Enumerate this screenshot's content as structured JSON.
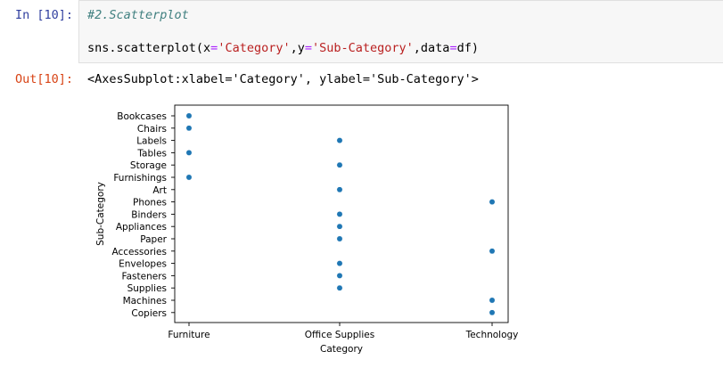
{
  "input_cell": {
    "prompt": "In [10]:",
    "code_comment": "#2.Scatterplot",
    "code_line": {
      "p1": "sns.scatterplot(x",
      "eq1": "=",
      "s1": "'Category'",
      "p2": ",y",
      "eq2": "=",
      "s2": "'Sub-Category'",
      "p3": ",data",
      "eq3": "=",
      "p4": "df)"
    }
  },
  "output_cell": {
    "prompt": "Out[10]:",
    "text": "<AxesSubplot:xlabel='Category', ylabel='Sub-Category'>"
  },
  "chart_data": {
    "type": "scatter",
    "xlabel": "Category",
    "ylabel": "Sub-Category",
    "x_categories": [
      "Furniture",
      "Office Supplies",
      "Technology"
    ],
    "y_categories": [
      "Bookcases",
      "Chairs",
      "Labels",
      "Tables",
      "Storage",
      "Furnishings",
      "Art",
      "Phones",
      "Binders",
      "Appliances",
      "Paper",
      "Accessories",
      "Envelopes",
      "Fasteners",
      "Supplies",
      "Machines",
      "Copiers"
    ],
    "points": [
      {
        "x": "Furniture",
        "y": "Bookcases"
      },
      {
        "x": "Furniture",
        "y": "Chairs"
      },
      {
        "x": "Office Supplies",
        "y": "Labels"
      },
      {
        "x": "Furniture",
        "y": "Tables"
      },
      {
        "x": "Office Supplies",
        "y": "Storage"
      },
      {
        "x": "Furniture",
        "y": "Furnishings"
      },
      {
        "x": "Office Supplies",
        "y": "Art"
      },
      {
        "x": "Technology",
        "y": "Phones"
      },
      {
        "x": "Office Supplies",
        "y": "Binders"
      },
      {
        "x": "Office Supplies",
        "y": "Appliances"
      },
      {
        "x": "Office Supplies",
        "y": "Paper"
      },
      {
        "x": "Technology",
        "y": "Accessories"
      },
      {
        "x": "Office Supplies",
        "y": "Envelopes"
      },
      {
        "x": "Office Supplies",
        "y": "Fasteners"
      },
      {
        "x": "Office Supplies",
        "y": "Supplies"
      },
      {
        "x": "Technology",
        "y": "Machines"
      },
      {
        "x": "Technology",
        "y": "Copiers"
      }
    ],
    "grid": false,
    "marker_color": "#1f77b4"
  }
}
